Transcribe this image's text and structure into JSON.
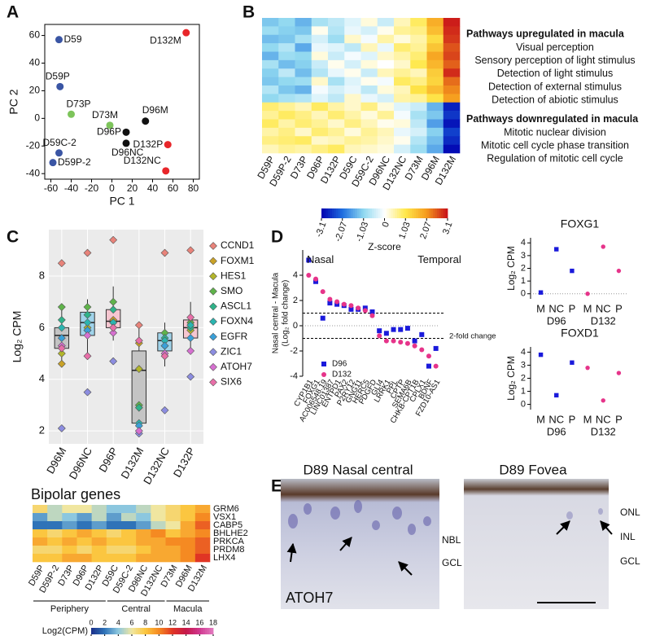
{
  "panel_labels": [
    "A",
    "B",
    "C",
    "D",
    "E"
  ],
  "chart_data": [
    {
      "type": "scatter",
      "xlabel": "PC 1",
      "ylabel": "PC 2",
      "xlim": [
        -66,
        86
      ],
      "ylim": [
        -44,
        68
      ],
      "xticks": [
        -60,
        -40,
        -20,
        0,
        20,
        40,
        60,
        80
      ],
      "yticks": [
        -40,
        -20,
        0,
        20,
        40,
        60
      ],
      "points": [
        {
          "label": "D59",
          "x": -52,
          "y": 57,
          "color": "#3a55a4"
        },
        {
          "label": "D59P",
          "x": -51,
          "y": 23,
          "color": "#3a55a4"
        },
        {
          "label": "D73P",
          "x": -40,
          "y": 3,
          "color": "#7dc45b"
        },
        {
          "label": "D59C-2",
          "x": -52,
          "y": -25,
          "color": "#3a55a4"
        },
        {
          "label": "D59P-2",
          "x": -58,
          "y": -32,
          "color": "#3a55a4"
        },
        {
          "label": "D73M",
          "x": -2,
          "y": -5,
          "color": "#7dc45b"
        },
        {
          "label": "D96P",
          "x": 14,
          "y": -10,
          "color": "#111111"
        },
        {
          "label": "D96NC",
          "x": 14,
          "y": -18,
          "color": "#111111"
        },
        {
          "label": "D96M",
          "x": 33,
          "y": -2,
          "color": "#111111"
        },
        {
          "label": "D132M",
          "x": 73,
          "y": 62,
          "color": "#e8262a"
        },
        {
          "label": "D132P",
          "x": 55,
          "y": -19,
          "color": "#e8262a"
        },
        {
          "label": "D132NC",
          "x": 53,
          "y": -38,
          "color": "#e8262a"
        }
      ]
    },
    {
      "type": "heatmap",
      "columns": [
        "D59P",
        "D59P-2",
        "D73P",
        "D96P",
        "D132P",
        "D59C",
        "D59C-2",
        "D96NC",
        "D132NC",
        "D73M",
        "D96M",
        "D132M"
      ],
      "values": [
        [
          -1.2,
          -1.0,
          -1.4,
          -0.8,
          -0.6,
          -0.3,
          0.2,
          -0.5,
          0.4,
          0.9,
          1.8,
          3.0
        ],
        [
          -0.9,
          -1.1,
          -1.2,
          0.1,
          -0.7,
          -0.2,
          -0.4,
          0.1,
          0.6,
          0.7,
          1.6,
          2.9
        ],
        [
          -1.3,
          -1.2,
          -0.8,
          -0.4,
          -0.9,
          0.3,
          -0.1,
          0.5,
          0.2,
          0.5,
          1.2,
          2.8
        ],
        [
          -1.0,
          -0.7,
          -1.5,
          -0.2,
          -0.3,
          -0.6,
          0.4,
          -0.2,
          0.8,
          0.6,
          1.5,
          2.6
        ],
        [
          -1.4,
          -0.9,
          -1.0,
          0.2,
          -0.5,
          -0.1,
          -0.3,
          0.3,
          0.5,
          0.8,
          1.9,
          2.7
        ],
        [
          -0.8,
          -1.3,
          -1.1,
          -0.5,
          0.1,
          -0.4,
          0.2,
          0.0,
          0.3,
          1.0,
          1.7,
          2.5
        ],
        [
          -1.1,
          -0.6,
          -1.3,
          -0.7,
          -0.2,
          0.1,
          -0.5,
          0.4,
          0.6,
          0.4,
          1.4,
          2.9
        ],
        [
          -1.2,
          -1.0,
          -0.9,
          0.3,
          -0.8,
          -0.3,
          0.1,
          -0.1,
          0.9,
          0.7,
          1.3,
          2.4
        ],
        [
          -0.7,
          -1.2,
          -1.4,
          -0.1,
          -0.4,
          -0.2,
          -0.6,
          0.2,
          0.4,
          1.1,
          1.6,
          2.2
        ],
        [
          -1.0,
          -0.8,
          -0.7,
          -0.3,
          -0.6,
          0.3,
          -0.2,
          -0.4,
          0.5,
          0.6,
          1.1,
          2.0
        ],
        [
          0.8,
          0.6,
          0.4,
          0.9,
          0.5,
          0.3,
          0.7,
          0.2,
          -0.3,
          -0.5,
          -1.4,
          -2.8
        ],
        [
          0.6,
          0.9,
          0.7,
          0.4,
          0.8,
          0.5,
          0.2,
          0.6,
          -0.1,
          -0.8,
          -1.2,
          -2.6
        ],
        [
          0.9,
          0.5,
          0.8,
          0.6,
          0.3,
          0.7,
          0.4,
          0.1,
          0.2,
          -0.6,
          -1.6,
          -2.9
        ],
        [
          0.5,
          0.7,
          0.3,
          0.8,
          0.6,
          0.2,
          0.6,
          0.4,
          -0.2,
          -0.4,
          -1.1,
          -2.5
        ],
        [
          0.7,
          0.8,
          0.9,
          0.3,
          0.4,
          0.6,
          0.5,
          0.3,
          0.1,
          -0.7,
          -1.3,
          -2.7
        ],
        [
          0.4,
          0.6,
          0.5,
          0.7,
          0.9,
          0.4,
          0.3,
          0.2,
          -0.4,
          -0.9,
          -1.5,
          -3.0
        ]
      ],
      "zlim": [
        -3.1,
        3.1
      ],
      "zticks": [
        -3.1,
        -2.07,
        -1.03,
        0,
        1.03,
        2.07,
        3.1
      ],
      "colorbar_label": "Z-score",
      "colors": [
        "#0000b0",
        "#1e6fe0",
        "#8fd8f0",
        "#ffffff",
        "#ffe84a",
        "#f59a1c",
        "#c8101a"
      ],
      "annotations": [
        {
          "heading": "Pathways upregulated in macula",
          "items": [
            "Visual perception",
            "Sensory perception of light stimulus",
            "Detection of light stimulus",
            "Detection of external stimulus",
            "Detection of abiotic stimulus"
          ]
        },
        {
          "heading": "Pathways downregulated in macula",
          "items": [
            "Mitotic nuclear division",
            "Mitotic cell cycle phase transition",
            "Regulation of mitotic cell cycle"
          ]
        }
      ]
    },
    {
      "type": "box",
      "ylabel": "Log₂ CPM",
      "categories": [
        "D96M",
        "D96NC",
        "D96P",
        "D132M",
        "D132NC",
        "D132P"
      ],
      "ylim": [
        1.5,
        9.8
      ],
      "yticks": [
        2,
        4,
        6,
        8
      ],
      "box_colors": [
        "#c4c4c4",
        "#9fd3ea",
        "#f6c6d0",
        "#c4c4c4",
        "#9fd3ea",
        "#f6c6d0"
      ],
      "boxes": [
        {
          "low": 4.6,
          "q1": 5.2,
          "median": 5.7,
          "q3": 6.0,
          "high": 6.8
        },
        {
          "low": 4.9,
          "q1": 5.7,
          "median": 6.2,
          "q3": 6.6,
          "high": 7.1
        },
        {
          "low": 5.5,
          "q1": 6.0,
          "median": 6.25,
          "q3": 6.7,
          "high": 7.6
        },
        {
          "low": 1.9,
          "q1": 2.3,
          "median": 4.35,
          "q3": 5.1,
          "high": 6.1
        },
        {
          "low": 4.5,
          "q1": 5.1,
          "median": 5.5,
          "q3": 5.8,
          "high": 6.2
        },
        {
          "low": 5.1,
          "q1": 5.6,
          "median": 6.0,
          "q3": 6.3,
          "high": 7.0
        }
      ],
      "series": [
        {
          "name": "CCND1",
          "color": "#e8837a",
          "values": [
            8.5,
            8.9,
            9.4,
            6.1,
            8.9,
            9.0
          ]
        },
        {
          "name": "FOXM1",
          "color": "#c9a227",
          "values": [
            4.6,
            5.9,
            6.3,
            5.4,
            5.3,
            6.0
          ]
        },
        {
          "name": "HES1",
          "color": "#b2b52a",
          "values": [
            5.0,
            6.0,
            6.2,
            4.4,
            5.5,
            5.9
          ]
        },
        {
          "name": "SMO",
          "color": "#5fb34a",
          "values": [
            6.8,
            6.8,
            7.0,
            3.0,
            5.8,
            6.2
          ]
        },
        {
          "name": "ASCL1",
          "color": "#2fb38a",
          "values": [
            6.3,
            6.5,
            6.7,
            2.9,
            5.6,
            6.0
          ]
        },
        {
          "name": "FOXN4",
          "color": "#2bb5b0",
          "values": [
            6.0,
            6.2,
            6.2,
            2.3,
            5.5,
            6.1
          ]
        },
        {
          "name": "EGFR",
          "color": "#3aa0d8",
          "values": [
            5.6,
            5.9,
            6.0,
            2.2,
            5.3,
            5.6
          ]
        },
        {
          "name": "ZIC1",
          "color": "#8c8de0",
          "values": [
            2.1,
            3.5,
            4.7,
            1.9,
            2.8,
            4.1
          ]
        },
        {
          "name": "ATOH7",
          "color": "#d670d0",
          "values": [
            5.3,
            5.7,
            5.8,
            2.0,
            5.0,
            5.1
          ]
        },
        {
          "name": "SIX6",
          "color": "#e86fa8",
          "values": [
            5.2,
            4.9,
            6.0,
            5.5,
            4.9,
            6.4
          ]
        }
      ]
    },
    {
      "type": "heatmap",
      "title": "Bipolar genes",
      "rows": [
        "GRM6",
        "VSX1",
        "CABP5",
        "BHLHE2",
        "PRKCA",
        "PRDM8",
        "LHX4"
      ],
      "columns": [
        "D59P",
        "D59P-2",
        "D73P",
        "D96P",
        "D132P",
        "D59C",
        "D59C-2",
        "D96NC",
        "D132NC",
        "D73M",
        "D96M",
        "D132M"
      ],
      "column_groups": [
        "Periphery",
        "Central",
        "Macula"
      ],
      "values": [
        [
          7,
          5,
          6,
          6,
          5,
          4,
          4,
          5,
          6,
          7,
          8,
          9
        ],
        [
          3,
          5,
          4,
          3,
          5,
          3,
          5,
          4,
          6,
          7,
          8,
          10
        ],
        [
          2,
          2,
          3,
          2,
          3,
          2,
          2,
          3,
          5,
          6,
          9,
          11
        ],
        [
          8,
          7,
          8,
          9,
          8,
          7,
          8,
          9,
          10,
          8,
          9,
          10
        ],
        [
          9,
          8,
          9,
          8,
          9,
          8,
          8,
          9,
          9,
          10,
          10,
          11
        ],
        [
          7,
          7,
          8,
          7,
          8,
          7,
          7,
          8,
          9,
          9,
          10,
          11
        ],
        [
          8,
          8,
          9,
          9,
          8,
          8,
          8,
          9,
          9,
          9,
          10,
          12
        ]
      ],
      "zlim": [
        0,
        18
      ],
      "zticks": [
        0,
        2,
        4,
        6,
        8,
        10,
        12,
        14,
        16,
        18
      ],
      "colorbar_label": "Log2(CPM)",
      "colors": [
        "#1a2f8a",
        "#2f73b8",
        "#8cc7df",
        "#f0e6a0",
        "#fbc640",
        "#f58a22",
        "#e03524",
        "#c4184a",
        "#d0388f",
        "#e27bc0"
      ]
    },
    {
      "type": "dot",
      "ylabel": [
        "Nasal central - Macula",
        "(Log₂ fold change)"
      ],
      "annotations": [
        "Nasal",
        "Temporal"
      ],
      "threshold_label": "2-fold change",
      "categories": [
        "CYP1B1",
        "FOXG1",
        "AC006548.19",
        "LINC01387",
        "ENTPD1",
        "PAX2",
        "P2RY12",
        "GNG11",
        "HERC5",
        "PDGFD",
        "GLI4",
        "LRRK1",
        "PPL",
        "CPTP",
        "SEMA6B",
        "CHKB-CPT1B",
        "CPLX1",
        "BDNF",
        "FZD10-AS1"
      ],
      "ylim": [
        -4,
        6
      ],
      "yticks": [
        -4,
        -2,
        0,
        2,
        4
      ],
      "thresholds": [
        1,
        -1
      ],
      "baseline": 0,
      "series": [
        {
          "name": "D96",
          "color": "#1a1adb",
          "marker": "square",
          "values": [
            5.2,
            3.5,
            0.6,
            1.8,
            1.7,
            1.6,
            1.3,
            1.3,
            1.4,
            1.1,
            -0.4,
            -0.6,
            -0.3,
            -0.3,
            -0.2,
            -1.2,
            -0.7,
            -3.2,
            -1.8
          ]
        },
        {
          "name": "D132",
          "color": "#e6348a",
          "marker": "circle",
          "values": [
            4.0,
            3.7,
            2.7,
            2.1,
            1.9,
            1.7,
            1.6,
            1.4,
            1.2,
            0.8,
            -0.8,
            -1.2,
            -1.2,
            -1.3,
            -1.4,
            -1.6,
            -1.9,
            -2.4,
            -3.2
          ]
        }
      ]
    },
    {
      "type": "dot",
      "title": "FOXG1",
      "ylabel": "Log₂ CPM",
      "categories": [
        "M",
        "NC",
        "P",
        "M",
        "NC",
        "P"
      ],
      "ylim": [
        -0.4,
        4.4
      ],
      "yticks": [
        0,
        1,
        2,
        3,
        4
      ],
      "baseline": 0,
      "series": [
        {
          "name": "D96",
          "color": "#1a1adb",
          "marker": "square",
          "values": [
            0.1,
            3.5,
            1.8,
            null,
            null,
            null
          ]
        },
        {
          "name": "D132",
          "color": "#e6348a",
          "marker": "circle",
          "values": [
            null,
            null,
            null,
            0.0,
            3.7,
            1.8
          ]
        }
      ]
    },
    {
      "type": "dot",
      "title": "FOXD1",
      "ylabel": "Log₂ CPM",
      "categories": [
        "M",
        "NC",
        "P",
        "M",
        "NC",
        "P"
      ],
      "ylim": [
        -0.4,
        4.4
      ],
      "yticks": [
        0,
        1,
        2,
        3,
        4
      ],
      "series": [
        {
          "name": "D96",
          "color": "#1a1adb",
          "marker": "square",
          "values": [
            3.8,
            0.7,
            3.2,
            null,
            null,
            null
          ]
        },
        {
          "name": "D132",
          "color": "#e6348a",
          "marker": "circle",
          "values": [
            null,
            null,
            null,
            2.8,
            0.3,
            2.4
          ]
        }
      ]
    }
  ],
  "panel_e": {
    "images": [
      {
        "title": "D89 Nasal central",
        "labels": [
          "NBL",
          "GCL"
        ],
        "stain": "ATOH7"
      },
      {
        "title": "D89 Fovea",
        "labels": [
          "ONL",
          "INL",
          "GCL"
        ]
      }
    ]
  }
}
